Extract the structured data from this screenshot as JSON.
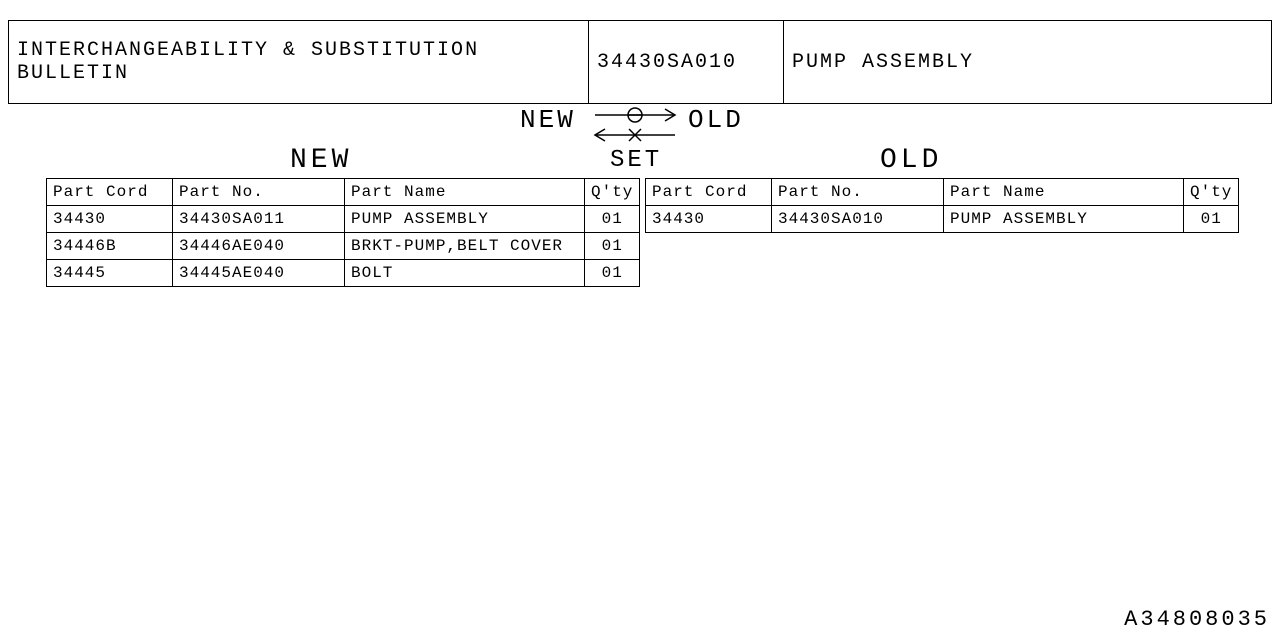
{
  "header": {
    "title": "INTERCHANGEABILITY & SUBSTITUTION BULLETIN",
    "part_number": "34430SA010",
    "part_name": "PUMP ASSEMBLY"
  },
  "diagram": {
    "left_label": "NEW",
    "right_label": "OLD",
    "bottom_label": "SET",
    "top_marker": "circle",
    "bottom_marker": "x"
  },
  "sections": {
    "new_heading": "NEW",
    "old_heading": "OLD"
  },
  "columns": {
    "part_cord": "Part Cord",
    "part_no": "Part No.",
    "part_name": "Part Name",
    "qty": "Q'ty"
  },
  "new_table": {
    "rows": [
      {
        "cord": "34430",
        "no": "34430SA011",
        "name": "PUMP ASSEMBLY",
        "qty": "01"
      },
      {
        "cord": "34446B",
        "no": "34446AE040",
        "name": "BRKT-PUMP,BELT COVER",
        "qty": "01"
      },
      {
        "cord": "34445",
        "no": "34445AE040",
        "name": "BOLT",
        "qty": "01"
      }
    ]
  },
  "old_table": {
    "rows": [
      {
        "cord": "34430",
        "no": "34430SA010",
        "name": "PUMP ASSEMBLY",
        "qty": "01"
      }
    ]
  },
  "footer_code": "A34808035"
}
